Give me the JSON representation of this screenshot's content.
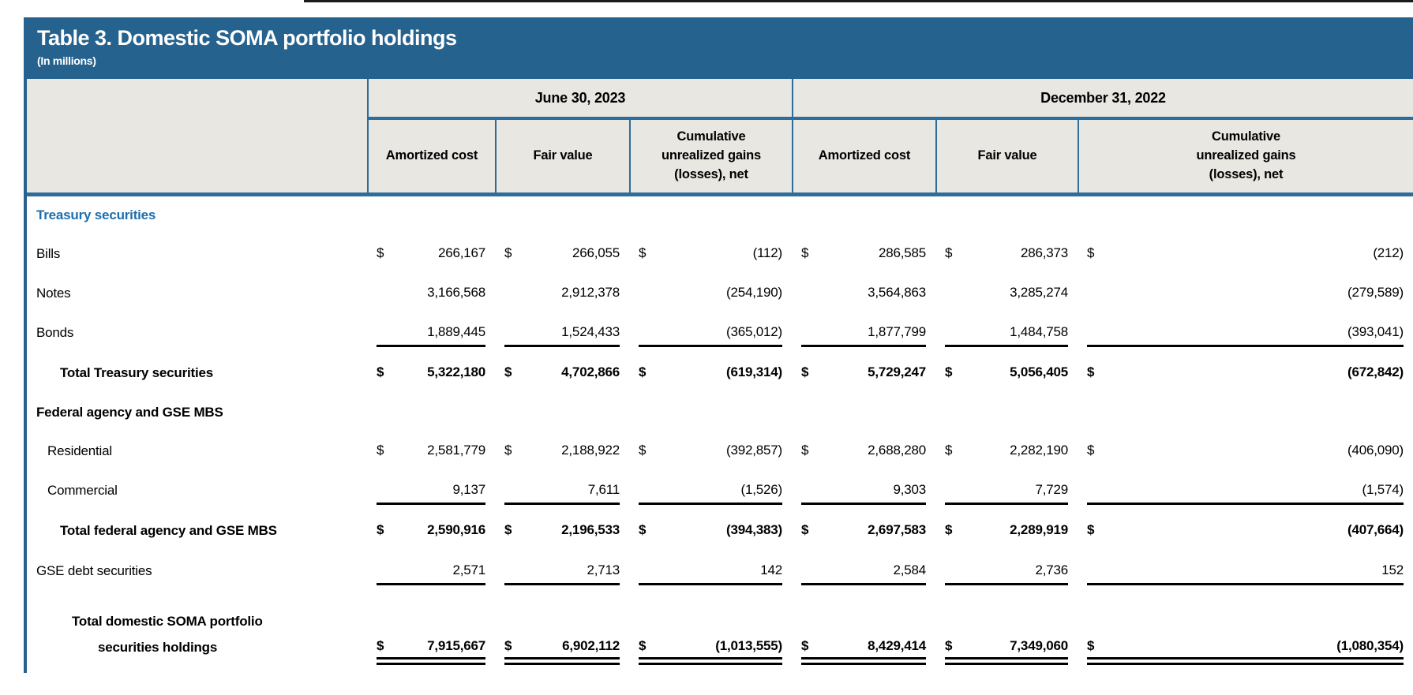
{
  "table": {
    "title": "Table 3. Domestic SOMA portfolio holdings",
    "subtitle": "(In millions)",
    "currency_symbol": "$",
    "col_groups": [
      {
        "label": "June 30, 2023",
        "columns": [
          "Amortized cost",
          "Fair value",
          "Cumulative\nunrealized gains\n(losses), net"
        ]
      },
      {
        "label": "December 31, 2022",
        "columns": [
          "Amortized cost",
          "Fair value",
          "Cumulative\nunrealized gains\n(losses), net"
        ]
      }
    ],
    "rows": [
      {
        "type": "section-blue",
        "label": "Treasury securities"
      },
      {
        "type": "data",
        "label": "Bills",
        "indent": 0,
        "dollar": true,
        "values": [
          "266,167",
          "266,055",
          "(112)",
          "286,585",
          "286,373",
          "(212)"
        ]
      },
      {
        "type": "data",
        "label": "Notes",
        "indent": 0,
        "dollar": false,
        "values": [
          "3,166,568",
          "2,912,378",
          "(254,190)",
          "3,564,863",
          "3,285,274",
          "(279,589)"
        ]
      },
      {
        "type": "data",
        "label": "Bonds",
        "indent": 0,
        "dollar": false,
        "rule_below": true,
        "values": [
          "1,889,445",
          "1,524,433",
          "(365,012)",
          "1,877,799",
          "1,484,758",
          "(393,041)"
        ]
      },
      {
        "type": "total",
        "label": "Total Treasury securities",
        "dollar": true,
        "values": [
          "5,322,180",
          "4,702,866",
          "(619,314)",
          "5,729,247",
          "5,056,405",
          "(672,842)"
        ]
      },
      {
        "type": "section-black",
        "label": "Federal agency and GSE MBS"
      },
      {
        "type": "data",
        "label": "Residential",
        "indent": 1,
        "dollar": true,
        "values": [
          "2,581,779",
          "2,188,922",
          "(392,857)",
          "2,688,280",
          "2,282,190",
          "(406,090)"
        ]
      },
      {
        "type": "data",
        "label": "Commercial",
        "indent": 1,
        "dollar": false,
        "rule_below": true,
        "values": [
          "9,137",
          "7,611",
          "(1,526)",
          "9,303",
          "7,729",
          "(1,574)"
        ]
      },
      {
        "type": "total",
        "label": "Total federal agency and GSE MBS",
        "dollar": true,
        "values": [
          "2,590,916",
          "2,196,533",
          "(394,383)",
          "2,697,583",
          "2,289,919",
          "(407,664)"
        ]
      },
      {
        "type": "data",
        "label": "GSE debt securities",
        "indent": 0,
        "dollar": false,
        "rule_below": true,
        "values": [
          "2,571",
          "2,713",
          "142",
          "2,584",
          "2,736",
          "152"
        ]
      },
      {
        "type": "grand",
        "label": "Total domestic SOMA portfolio securities holdings",
        "label_lines": [
          "Total domestic SOMA portfolio",
          "securities holdings"
        ],
        "dollar": true,
        "double_rule_below": true,
        "values": [
          "7,915,667",
          "6,902,112",
          "(1,013,555)",
          "8,429,414",
          "7,349,060",
          "(1,080,354)"
        ]
      }
    ],
    "colors": {
      "title_bar_blue": "#26628E",
      "header_line_blue": "#2E6D9A",
      "header_gray": "#E8E7E2",
      "section_text_blue": "#1D6EAE",
      "body_text": "#000000",
      "title_text": "#FFFFFF"
    }
  }
}
